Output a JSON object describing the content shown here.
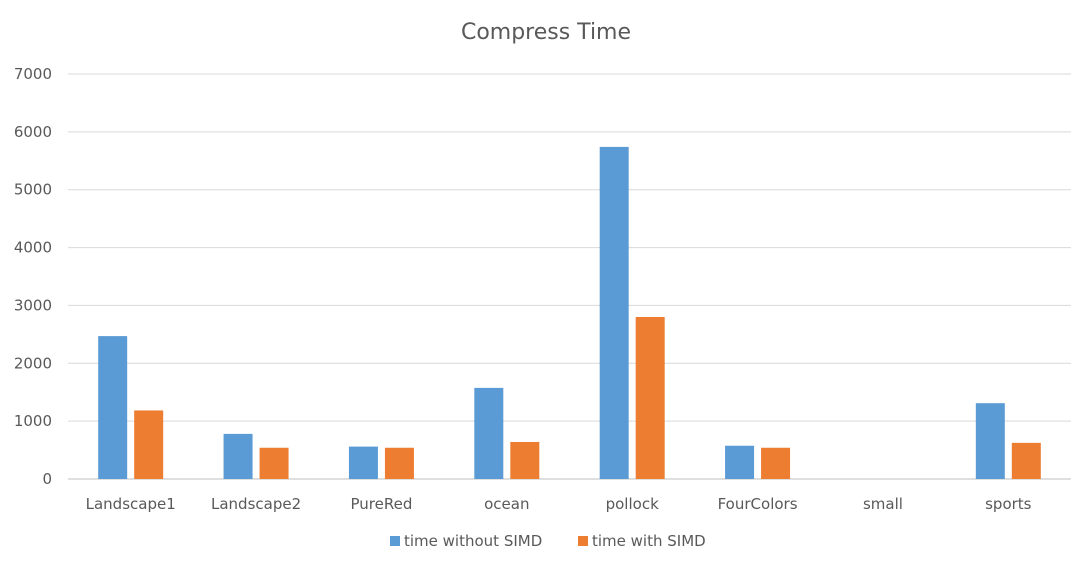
{
  "chart_data": {
    "type": "bar",
    "title": "Compress Time",
    "xlabel": "",
    "ylabel": "",
    "categories": [
      "Landscape1",
      "Landscape2",
      "PureRed",
      "ocean",
      "pollock",
      "FourColors",
      "small",
      "sports"
    ],
    "series": [
      {
        "name": "time without SIMD",
        "color": "#5B9BD5",
        "values": [
          2470,
          780,
          560,
          1575,
          5740,
          575,
          0,
          1310
        ]
      },
      {
        "name": "time with SIMD",
        "color": "#ED7D31",
        "values": [
          1185,
          540,
          540,
          640,
          2800,
          540,
          0,
          625
        ]
      }
    ],
    "ylim": [
      0,
      7000
    ],
    "yticks": [
      0,
      1000,
      2000,
      3000,
      4000,
      5000,
      6000,
      7000
    ],
    "grid": true,
    "legend": "bottom"
  }
}
